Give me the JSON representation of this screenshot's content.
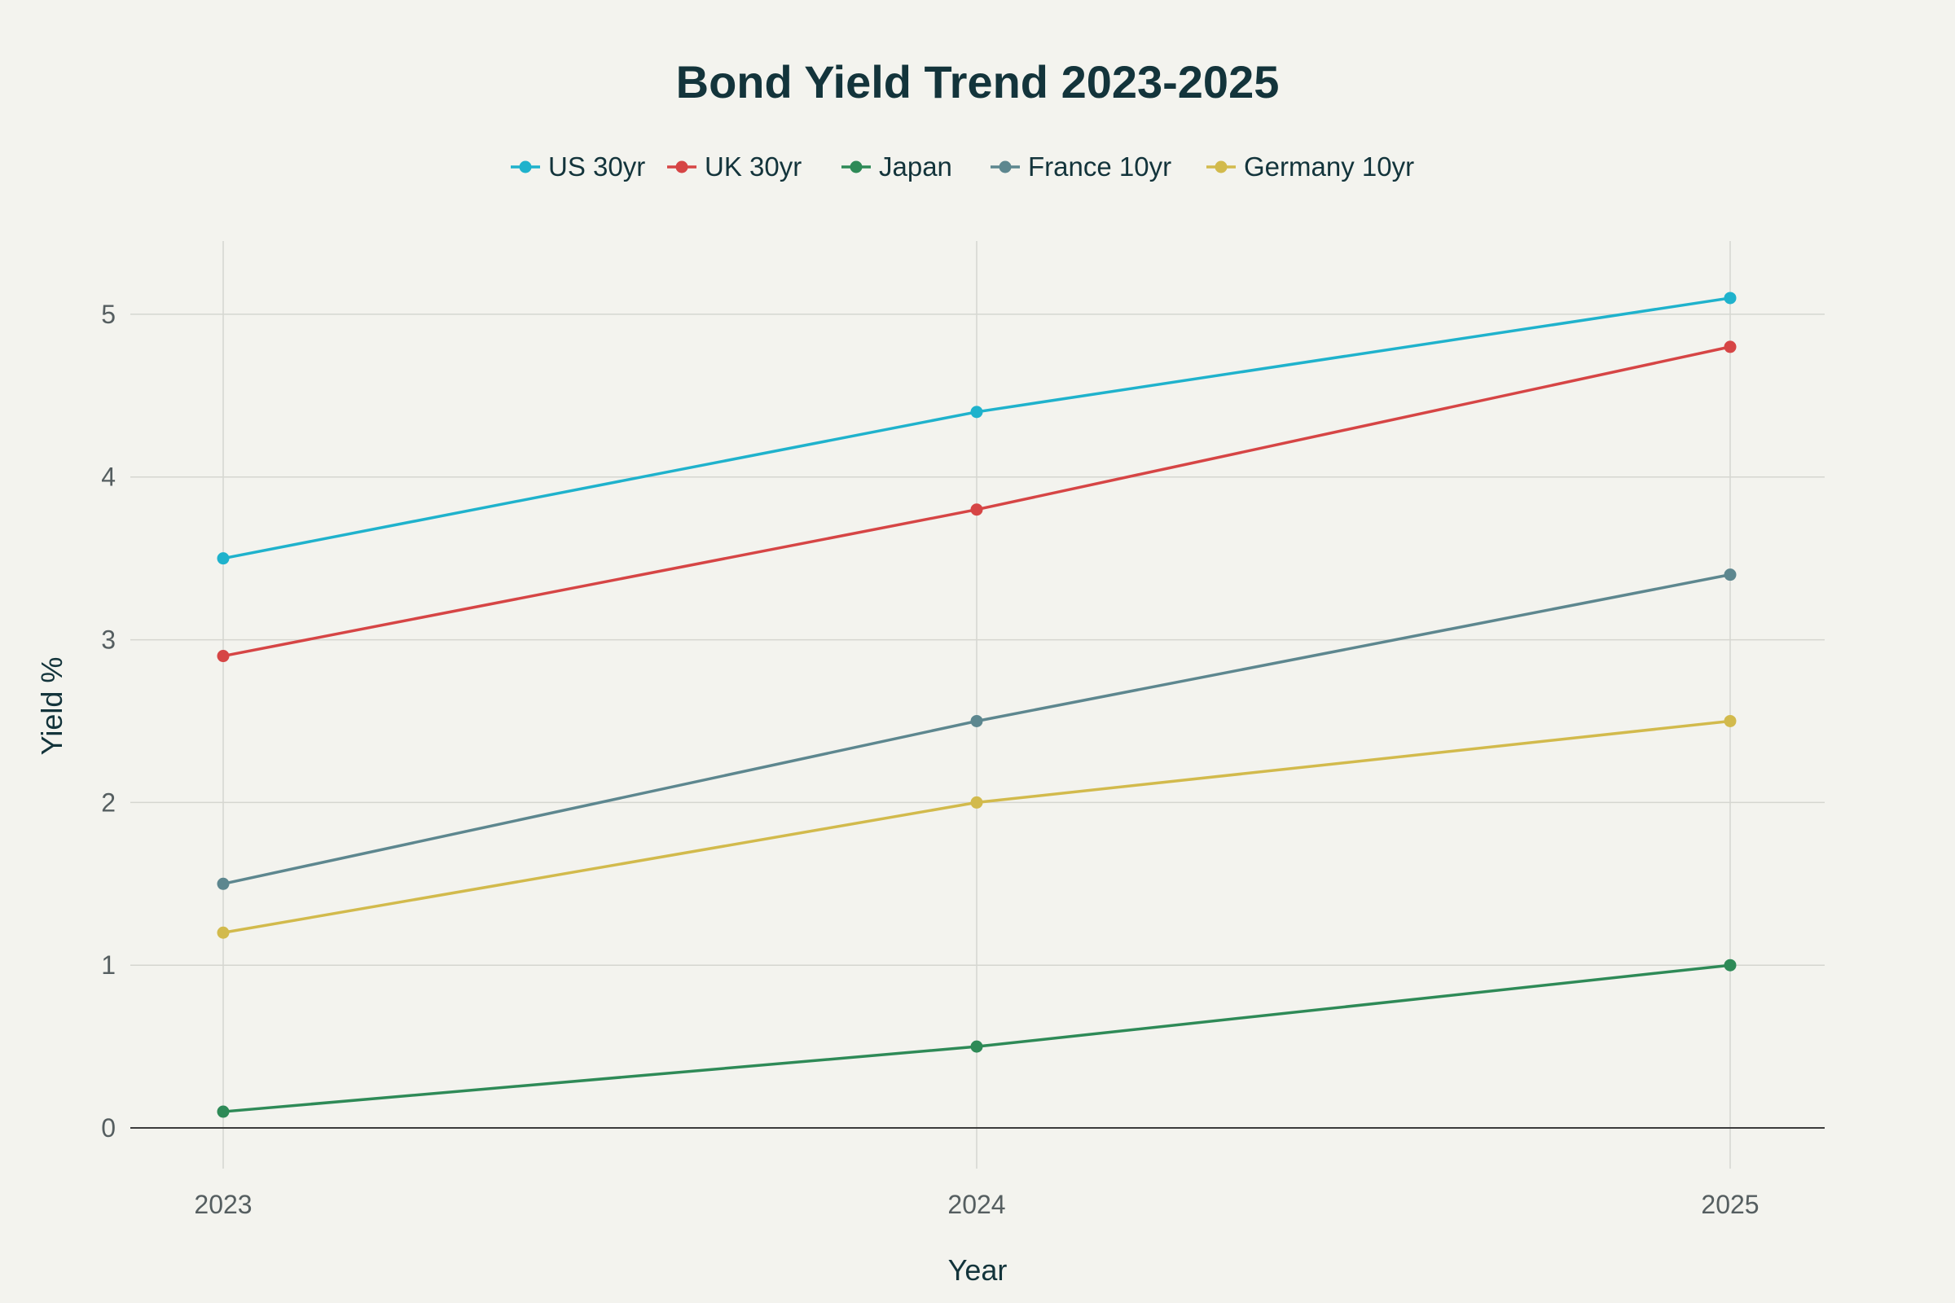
{
  "chart_data": {
    "type": "line",
    "title": "Bond Yield Trend 2023-2025",
    "xlabel": "Year",
    "ylabel": "Yield %",
    "x": [
      "2023",
      "2024",
      "2025"
    ],
    "ylim": [
      -0.25,
      5.45
    ],
    "y_ticks": [
      0,
      1,
      2,
      3,
      4,
      5
    ],
    "grid": true,
    "legend_position": "top-center",
    "series": [
      {
        "name": "US 30yr",
        "color": "#1fb2cc",
        "values": [
          3.5,
          4.4,
          5.1
        ]
      },
      {
        "name": "UK 30yr",
        "color": "#d64545",
        "values": [
          2.9,
          3.8,
          4.8
        ]
      },
      {
        "name": "Japan",
        "color": "#2e8a57",
        "values": [
          0.1,
          0.5,
          1.0
        ]
      },
      {
        "name": "France 10yr",
        "color": "#5d878f",
        "values": [
          1.5,
          2.5,
          3.4
        ]
      },
      {
        "name": "Germany 10yr",
        "color": "#d2ba4c",
        "values": [
          1.2,
          2.0,
          2.5
        ]
      }
    ]
  }
}
